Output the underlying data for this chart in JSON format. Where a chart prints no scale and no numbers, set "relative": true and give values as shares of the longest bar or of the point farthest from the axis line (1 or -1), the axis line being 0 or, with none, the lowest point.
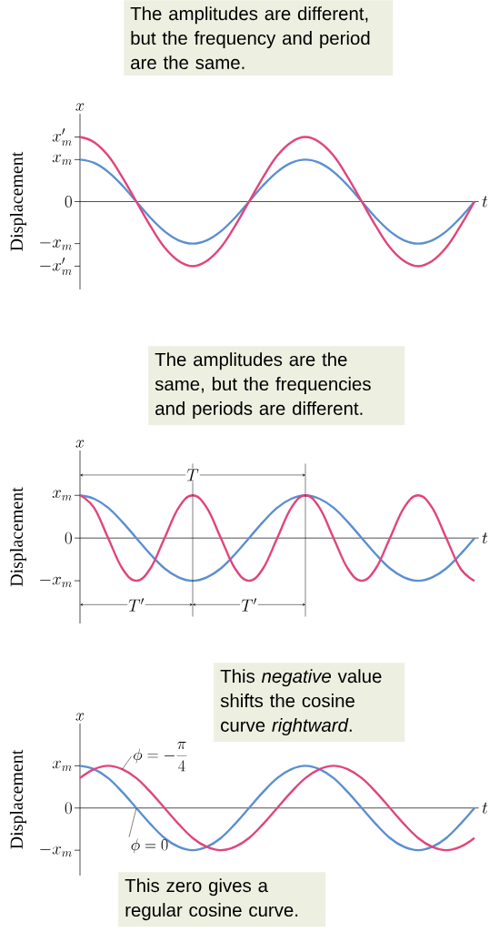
{
  "chart_data": [
    {
      "type": "line",
      "relative": true,
      "xlabel": "t",
      "ylabel": "Displacement",
      "annotations": [
        "x",
        "The amplitudes are different, but the frequency and period are the same.",
        "x'_m",
        "x_m",
        "0",
        "-x_m",
        "-x'_m"
      ],
      "categories": [
        null,
        null,
        null,
        null,
        null,
        null,
        null,
        null,
        null,
        null,
        null,
        null,
        null,
        null,
        null,
        null,
        null,
        null,
        null,
        null,
        null,
        null,
        null,
        null,
        null,
        null,
        null,
        null,
        null
      ],
      "series": [
        {
          "color": "#5b8fd0",
          "values": [
            0.65,
            0.6,
            0.46,
            0.25,
            0,
            -0.25,
            -0.46,
            -0.6,
            -0.65,
            -0.6,
            -0.46,
            -0.25,
            0,
            0.25,
            0.46,
            0.6,
            0.65,
            0.6,
            0.46,
            0.25,
            0,
            -0.25,
            -0.46,
            -0.6,
            -0.65,
            -0.6,
            -0.46,
            -0.25,
            0
          ]
        },
        {
          "color": "#e0457b",
          "values": [
            1,
            0.92,
            0.71,
            0.38,
            0,
            -0.38,
            -0.71,
            -0.92,
            -1,
            -0.92,
            -0.71,
            -0.38,
            0,
            0.38,
            0.71,
            0.92,
            1,
            0.92,
            0.71,
            0.38,
            0,
            -0.38,
            -0.71,
            -0.92,
            -1,
            -0.92,
            -0.71,
            -0.38,
            0
          ]
        }
      ]
    },
    {
      "type": "line",
      "relative": true,
      "xlabel": "t",
      "ylabel": "Displacement",
      "annotations": [
        "x",
        "The amplitudes are the same, but the frequencies and periods are different.",
        "T",
        "T'",
        "T'",
        "x_m",
        "0",
        "-x_m"
      ],
      "categories": [
        null,
        null,
        null,
        null,
        null,
        null,
        null,
        null,
        null,
        null,
        null,
        null,
        null,
        null,
        null,
        null,
        null,
        null,
        null,
        null,
        null,
        null,
        null,
        null,
        null,
        null,
        null,
        null,
        null
      ],
      "series": [
        {
          "color": "#5b8fd0",
          "values": [
            1,
            0.92,
            0.71,
            0.38,
            0,
            -0.38,
            -0.71,
            -0.92,
            -1,
            -0.92,
            -0.71,
            -0.38,
            0,
            0.38,
            0.71,
            0.92,
            1,
            0.92,
            0.71,
            0.38,
            0,
            -0.38,
            -0.71,
            -0.92,
            -1,
            -0.92,
            -0.71,
            -0.38,
            0
          ]
        },
        {
          "color": "#e0457b",
          "values": [
            1,
            0.71,
            0,
            -0.71,
            -1,
            -0.71,
            0,
            0.71,
            1,
            0.71,
            0,
            -0.71,
            -1,
            -0.71,
            0,
            0.71,
            1,
            0.71,
            0,
            -0.71,
            -1,
            -0.71,
            0,
            0.71,
            1,
            0.71,
            0,
            -0.71,
            -1
          ]
        }
      ]
    },
    {
      "type": "line",
      "relative": true,
      "xlabel": "t",
      "ylabel": "Displacement",
      "annotations": [
        "x",
        "This *negative* value shifts the cosine curve *rightward*.",
        "This zero gives a regular cosine curve.",
        "x_m",
        "0",
        "-x_m"
      ],
      "categories": [
        null,
        null,
        null,
        null,
        null,
        null,
        null,
        null,
        null,
        null,
        null,
        null,
        null,
        null,
        null,
        null,
        null,
        null,
        null,
        null,
        null,
        null,
        null,
        null,
        null,
        null,
        null,
        null,
        null
      ],
      "series": [
        {
          "name": "\\phi = 0",
          "color": "#5b8fd0",
          "values": [
            1,
            0.92,
            0.71,
            0.38,
            0,
            -0.38,
            -0.71,
            -0.92,
            -1,
            -0.92,
            -0.71,
            -0.38,
            0,
            0.38,
            0.71,
            0.92,
            1,
            0.92,
            0.71,
            0.38,
            0,
            -0.38,
            -0.71,
            -0.92,
            -1,
            -0.92,
            -0.71,
            -0.38,
            0
          ]
        },
        {
          "name": "\\phi = -\\frac{\\pi}{4}",
          "color": "#e0457b",
          "values": [
            0.71,
            0.92,
            1,
            0.92,
            0.71,
            0.38,
            0,
            -0.38,
            -0.71,
            -0.92,
            -1,
            -0.92,
            -0.71,
            -0.38,
            0,
            0.38,
            0.71,
            0.92,
            1,
            0.92,
            0.71,
            0.38,
            0,
            -0.38,
            -0.71,
            -0.92,
            -1,
            -0.92,
            -0.71
          ]
        }
      ]
    }
  ]
}
